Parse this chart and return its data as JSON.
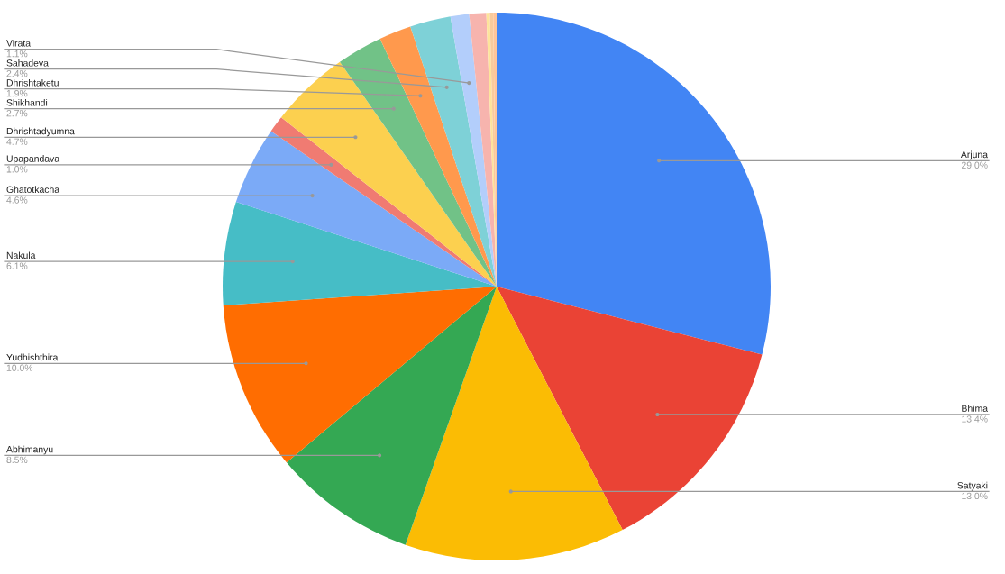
{
  "chart_data": {
    "type": "pie",
    "categories": [
      "Arjuna",
      "Bhima",
      "Satyaki",
      "Abhimanyu",
      "Yudhishthira",
      "Nakula",
      "Ghatotkacha",
      "Upapandava",
      "Dhrishtadyumna",
      "Shikhandi",
      "Dhrishtaketu",
      "Sahadeva",
      "Virata",
      null,
      null,
      null,
      null
    ],
    "values": [
      29.0,
      13.4,
      13.0,
      8.5,
      10.0,
      6.1,
      4.6,
      1.0,
      4.7,
      2.7,
      1.9,
      2.4,
      1.1,
      1.0,
      0.2,
      0.2,
      0.2
    ],
    "value_labels": [
      "29.0%",
      "13.4%",
      "13.0%",
      "8.5%",
      "10.0%",
      "6.1%",
      "4.6%",
      "1.0%",
      "4.7%",
      "2.7%",
      "1.9%",
      "2.4%",
      "1.1%",
      null,
      null,
      null,
      null
    ],
    "colors": [
      "#4285f4",
      "#ea4335",
      "#fbbc04",
      "#34a853",
      "#ff6d01",
      "#46bdc6",
      "#7baaf7",
      "#f07b72",
      "#fcd04f",
      "#71c287",
      "#ff994d",
      "#7ed1d7",
      "#b3cefb",
      "#f7b4ae",
      "#fde49b",
      "#f9cb9c",
      "#ffc599"
    ]
  }
}
